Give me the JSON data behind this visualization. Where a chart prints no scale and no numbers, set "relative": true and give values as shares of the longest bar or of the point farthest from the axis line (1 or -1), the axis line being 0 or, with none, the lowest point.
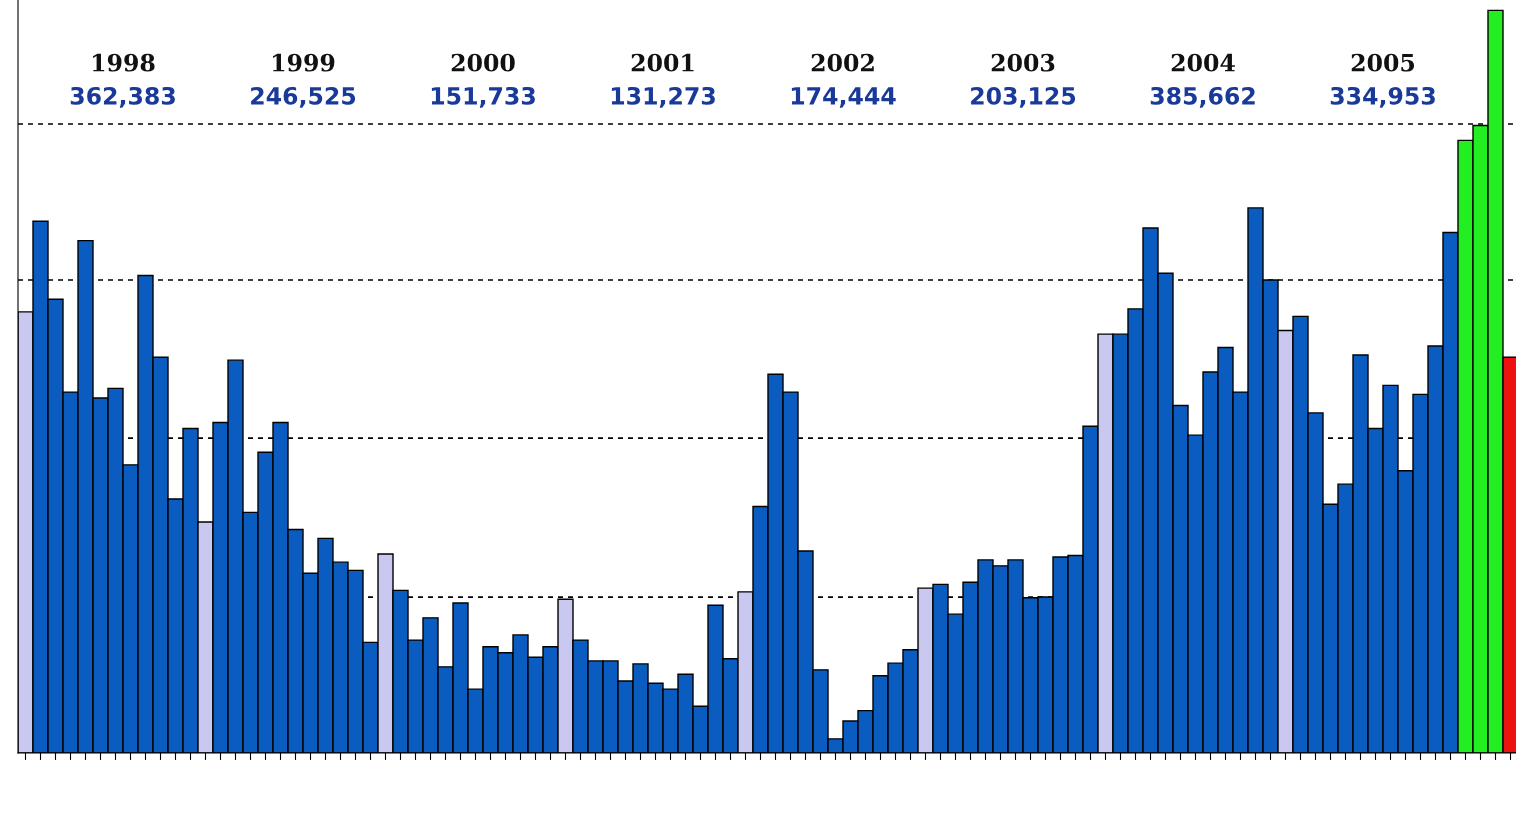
{
  "chart_data": {
    "type": "bar",
    "relative": true,
    "categories": [
      null,
      null,
      null,
      null,
      null,
      null,
      null,
      null,
      null,
      null,
      null,
      null,
      null,
      null,
      null,
      null,
      null,
      null,
      null,
      null,
      null,
      null,
      null,
      null,
      null,
      null,
      null,
      null,
      null,
      null,
      null,
      null,
      null,
      null,
      null,
      null,
      null,
      null,
      null,
      null,
      null,
      null,
      null,
      null,
      null,
      null,
      null,
      null,
      null,
      null,
      null,
      null,
      null,
      null,
      null,
      null,
      null,
      null,
      null,
      null,
      null,
      null,
      null,
      null,
      null,
      null,
      null,
      null,
      null,
      null,
      null,
      null,
      null,
      null,
      null,
      null,
      null,
      null,
      null,
      null,
      null,
      null,
      null,
      null,
      null,
      null,
      null,
      null,
      null,
      null,
      null,
      null,
      null,
      null,
      null,
      null,
      null,
      null,
      null,
      null
    ],
    "values": [
      0.594,
      0.716,
      0.611,
      0.486,
      0.69,
      0.478,
      0.491,
      0.388,
      0.643,
      0.533,
      0.342,
      0.437,
      0.311,
      0.445,
      0.529,
      0.324,
      0.405,
      0.445,
      0.301,
      0.242,
      0.289,
      0.257,
      0.246,
      0.149,
      0.268,
      0.219,
      0.152,
      0.182,
      0.116,
      0.202,
      0.086,
      0.143,
      0.135,
      0.159,
      0.129,
      0.143,
      0.207,
      0.152,
      0.124,
      0.124,
      0.097,
      0.12,
      0.094,
      0.086,
      0.106,
      0.063,
      0.199,
      0.127,
      0.217,
      0.332,
      0.51,
      0.486,
      0.272,
      0.112,
      0.019,
      0.043,
      0.057,
      0.104,
      0.121,
      0.139,
      0.222,
      0.227,
      0.187,
      0.23,
      0.26,
      0.252,
      0.26,
      0.209,
      0.21,
      0.264,
      0.266,
      0.44,
      0.564,
      0.564,
      0.598,
      0.707,
      0.646,
      0.468,
      0.428,
      0.513,
      0.546,
      0.486,
      0.734,
      0.637,
      0.569,
      0.588,
      0.458,
      0.335,
      0.362,
      0.536,
      0.437,
      0.495,
      0.38,
      0.483,
      0.548,
      0.701,
      0.825,
      0.845,
      1.0,
      0.533
    ],
    "colors": [
      "#c8c8f0",
      "#0a5cc0",
      "#0a5cc0",
      "#0a5cc0",
      "#0a5cc0",
      "#0a5cc0",
      "#0a5cc0",
      "#0a5cc0",
      "#0a5cc0",
      "#0a5cc0",
      "#0a5cc0",
      "#0a5cc0",
      "#c8c8f0",
      "#0a5cc0",
      "#0a5cc0",
      "#0a5cc0",
      "#0a5cc0",
      "#0a5cc0",
      "#0a5cc0",
      "#0a5cc0",
      "#0a5cc0",
      "#0a5cc0",
      "#0a5cc0",
      "#0a5cc0",
      "#c8c8f0",
      "#0a5cc0",
      "#0a5cc0",
      "#0a5cc0",
      "#0a5cc0",
      "#0a5cc0",
      "#0a5cc0",
      "#0a5cc0",
      "#0a5cc0",
      "#0a5cc0",
      "#0a5cc0",
      "#0a5cc0",
      "#c8c8f0",
      "#0a5cc0",
      "#0a5cc0",
      "#0a5cc0",
      "#0a5cc0",
      "#0a5cc0",
      "#0a5cc0",
      "#0a5cc0",
      "#0a5cc0",
      "#0a5cc0",
      "#0a5cc0",
      "#0a5cc0",
      "#c8c8f0",
      "#0a5cc0",
      "#0a5cc0",
      "#0a5cc0",
      "#0a5cc0",
      "#0a5cc0",
      "#0a5cc0",
      "#0a5cc0",
      "#0a5cc0",
      "#0a5cc0",
      "#0a5cc0",
      "#0a5cc0",
      "#c8c8f0",
      "#0a5cc0",
      "#0a5cc0",
      "#0a5cc0",
      "#0a5cc0",
      "#0a5cc0",
      "#0a5cc0",
      "#0a5cc0",
      "#0a5cc0",
      "#0a5cc0",
      "#0a5cc0",
      "#0a5cc0",
      "#c8c8f0",
      "#0a5cc0",
      "#0a5cc0",
      "#0a5cc0",
      "#0a5cc0",
      "#0a5cc0",
      "#0a5cc0",
      "#0a5cc0",
      "#0a5cc0",
      "#0a5cc0",
      "#0a5cc0",
      "#0a5cc0",
      "#c8c8f0",
      "#0a5cc0",
      "#0a5cc0",
      "#0a5cc0",
      "#0a5cc0",
      "#0a5cc0",
      "#0a5cc0",
      "#0a5cc0",
      "#0a5cc0",
      "#0a5cc0",
      "#0a5cc0",
      "#0a5cc0",
      "#22ee22",
      "#22ee22",
      "#22ee22",
      "#ee1111"
    ],
    "annotations": [
      "1998",
      "362,383",
      "1999",
      "246,525",
      "2000",
      "151,733",
      "2001",
      "131,273",
      "2002",
      "174,444",
      "2003",
      "203,125",
      "2004",
      "385,662",
      "2005",
      "334,953"
    ],
    "ref_lines": [
      {
        "axis": "y",
        "value": 0.847,
        "line_style": "dashed",
        "color": "#000000"
      },
      {
        "axis": "y",
        "value": 0.637,
        "line_style": "dashed",
        "color": "#000000"
      },
      {
        "axis": "y",
        "value": 0.424,
        "line_style": "dashed",
        "color": "#000000"
      },
      {
        "axis": "y",
        "value": 0.21,
        "line_style": "dashed",
        "color": "#000000"
      }
    ],
    "grid": false,
    "legend": false
  }
}
